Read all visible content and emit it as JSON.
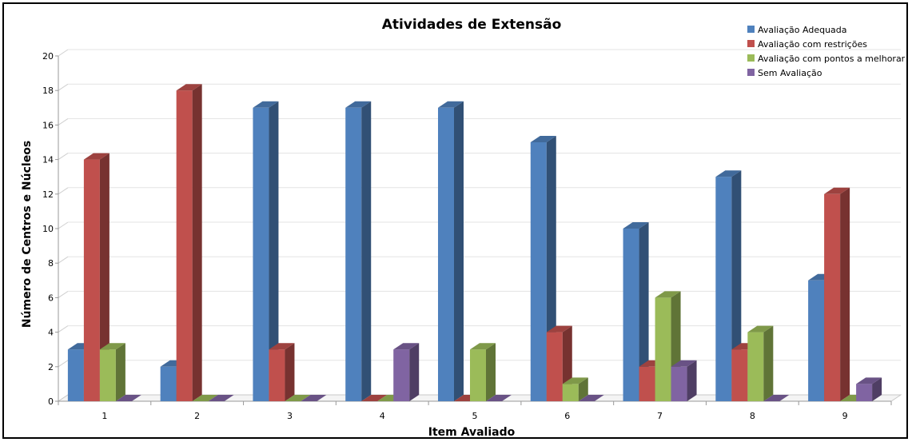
{
  "chart_data": {
    "type": "bar",
    "title": "Atividades de Extensão",
    "xlabel": "Item Avaliado",
    "ylabel": "Número de Centros e Núcleos",
    "categories": [
      "1",
      "2",
      "3",
      "4",
      "5",
      "6",
      "7",
      "8",
      "9"
    ],
    "ylim": [
      0,
      20
    ],
    "yticks": [
      "0",
      "2",
      "4",
      "6",
      "8",
      "10",
      "12",
      "14",
      "16",
      "18",
      "20"
    ],
    "grid": true,
    "legend_position": "top-right",
    "series": [
      {
        "name": "Avaliação Adequada",
        "color": "#4F81BD",
        "values": [
          3,
          2,
          17,
          17,
          17,
          15,
          10,
          13,
          7
        ]
      },
      {
        "name": "Avaliação com restrições",
        "color": "#C0504D",
        "values": [
          14,
          18,
          3,
          0,
          0,
          4,
          2,
          3,
          12
        ]
      },
      {
        "name": "Avaliação com pontos a melhorar",
        "color": "#9BBB59",
        "values": [
          3,
          0,
          0,
          0,
          3,
          1,
          6,
          4,
          0
        ]
      },
      {
        "name": "Sem Avaliação",
        "color": "#8064A2",
        "values": [
          0,
          0,
          0,
          3,
          0,
          0,
          2,
          0,
          1
        ]
      }
    ]
  }
}
